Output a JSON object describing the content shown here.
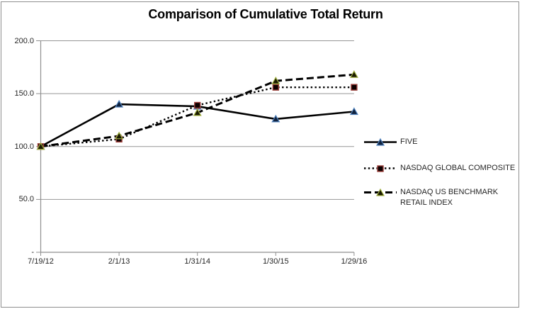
{
  "chart_data": {
    "type": "line",
    "title": "Comparison of Cumulative Total Return",
    "categories": [
      "7/19/12",
      "2/1/13",
      "1/31/14",
      "1/30/15",
      "1/29/16"
    ],
    "series": [
      {
        "name": "FIVE",
        "values": [
          100.0,
          140.0,
          138.0,
          126.0,
          133.0
        ],
        "line_style": "solid",
        "line_color": "#000000",
        "marker": "triangle",
        "marker_fill": "#10233f",
        "marker_stroke": "#4f81bd"
      },
      {
        "name": "NASDAQ GLOBAL COMPOSITE",
        "values": [
          100.0,
          107.0,
          139.0,
          156.0,
          156.0
        ],
        "line_style": "dotted",
        "line_color": "#000000",
        "marker": "square",
        "marker_fill": "#0d0000",
        "marker_stroke": "#9e413d"
      },
      {
        "name": "NASDAQ US BENCHMARK RETAIL INDEX",
        "values": [
          100.0,
          110.0,
          132.0,
          162.0,
          168.0
        ],
        "line_style": "dashed",
        "line_color": "#000000",
        "marker": "triangle",
        "marker_fill": "#1a1a00",
        "marker_stroke": "#a2b144"
      }
    ],
    "ylim": [
      0,
      200
    ],
    "yticks": [
      {
        "value": 200,
        "label": "200.0"
      },
      {
        "value": 150,
        "label": "150.0"
      },
      {
        "value": 100,
        "label": "100.0"
      },
      {
        "value": 50,
        "label": "50.0"
      },
      {
        "value": 0,
        "label": "-"
      }
    ],
    "grid": "horizontal",
    "legend_position": "right",
    "colors": {
      "grid": "#969696",
      "axis": "#8f8f8f",
      "frame": "#8f8f8f",
      "text": "#262626",
      "title": "#000000",
      "background": "#ffffff"
    }
  },
  "legend": {
    "entries": [
      {
        "series": "FIVE",
        "lines": [
          "FIVE"
        ]
      },
      {
        "series": "NASDAQ GLOBAL COMPOSITE",
        "lines": [
          "NASDAQ GLOBAL COMPOSITE"
        ]
      },
      {
        "series": "NASDAQ US BENCHMARK RETAIL INDEX",
        "lines": [
          "NASDAQ US BENCHMARK",
          "RETAIL INDEX"
        ]
      }
    ]
  }
}
